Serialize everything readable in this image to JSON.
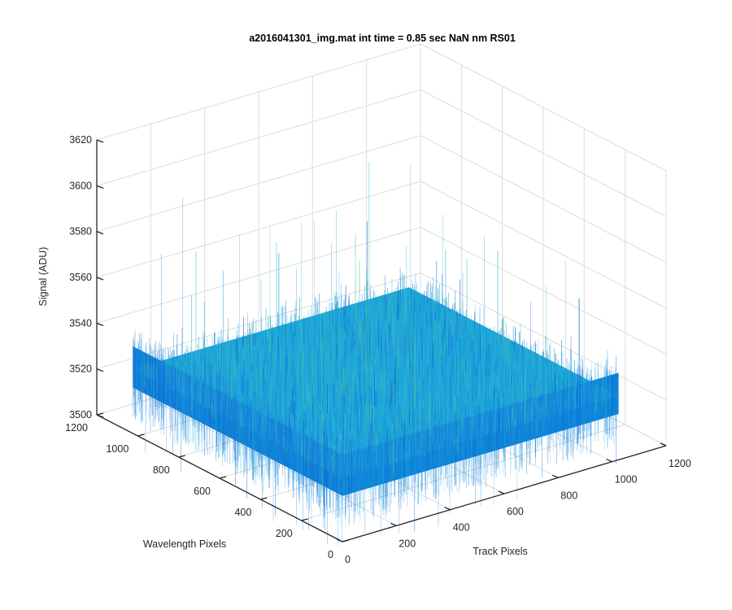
{
  "chart_data": {
    "type": "surface3d",
    "title": "a2016041301_img.mat int time = 0.85 sec  NaN nm RS01",
    "xlabel": "Track Pixels",
    "ylabel": "Wavelength Pixels",
    "zlabel": "Signal (ADU)",
    "xlim": [
      0,
      1200
    ],
    "ylim": [
      0,
      1200
    ],
    "zlim": [
      3500,
      3620
    ],
    "xticks": [
      0,
      200,
      400,
      600,
      800,
      1000,
      1200
    ],
    "yticks": [
      0,
      200,
      400,
      600,
      800,
      1000,
      1200
    ],
    "zticks": [
      3500,
      3520,
      3540,
      3560,
      3580,
      3600,
      3620
    ],
    "data_extent": {
      "x": [
        0,
        1024
      ],
      "y": [
        0,
        1024
      ]
    },
    "signal_mean": 3528,
    "signal_noise_range": [
      3505,
      3600
    ],
    "colormap": "parula",
    "colors": [
      "#0a63d6",
      "#138de0",
      "#1aa3d8",
      "#2ab5c2",
      "#4bbfa6"
    ],
    "grid": true
  }
}
